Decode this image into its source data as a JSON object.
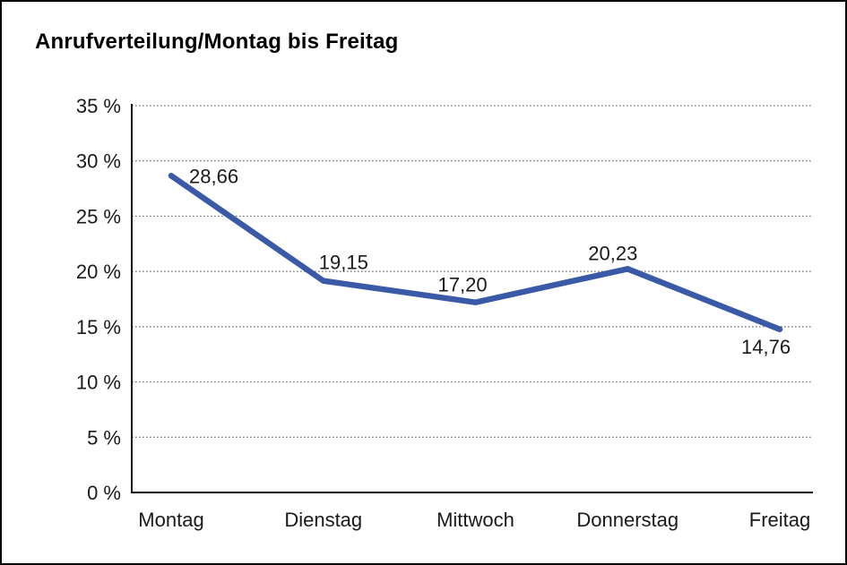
{
  "window": {
    "background": "#ffffff",
    "border_color": "#000000"
  },
  "title": "Anrufverteilung/Montag bis Freitag",
  "chart_data": {
    "type": "line",
    "title": "Anrufverteilung/Montag bis Freitag",
    "categories": [
      "Montag",
      "Dienstag",
      "Mittwoch",
      "Donnerstag",
      "Freitag"
    ],
    "values": [
      28.66,
      19.15,
      17.2,
      20.23,
      14.76
    ],
    "value_labels": [
      "28,66",
      "19,15",
      "17,20",
      "20,23",
      "14,76"
    ],
    "series_name": "Anrufverteilung",
    "xlabel": "",
    "ylabel": "",
    "ylim": [
      0,
      35
    ],
    "ytick_step": 5,
    "ytick_labels": [
      "0 %",
      "5 %",
      "10 %",
      "15 %",
      "20 %",
      "25 %",
      "30 %",
      "35 %"
    ],
    "grid": "dotted-horizontal",
    "legend": "none",
    "line_color": "#3A5AA8",
    "grid_color": "#6b6b6b",
    "axis_color": "#000000",
    "text_color": "#1a1a1a"
  }
}
